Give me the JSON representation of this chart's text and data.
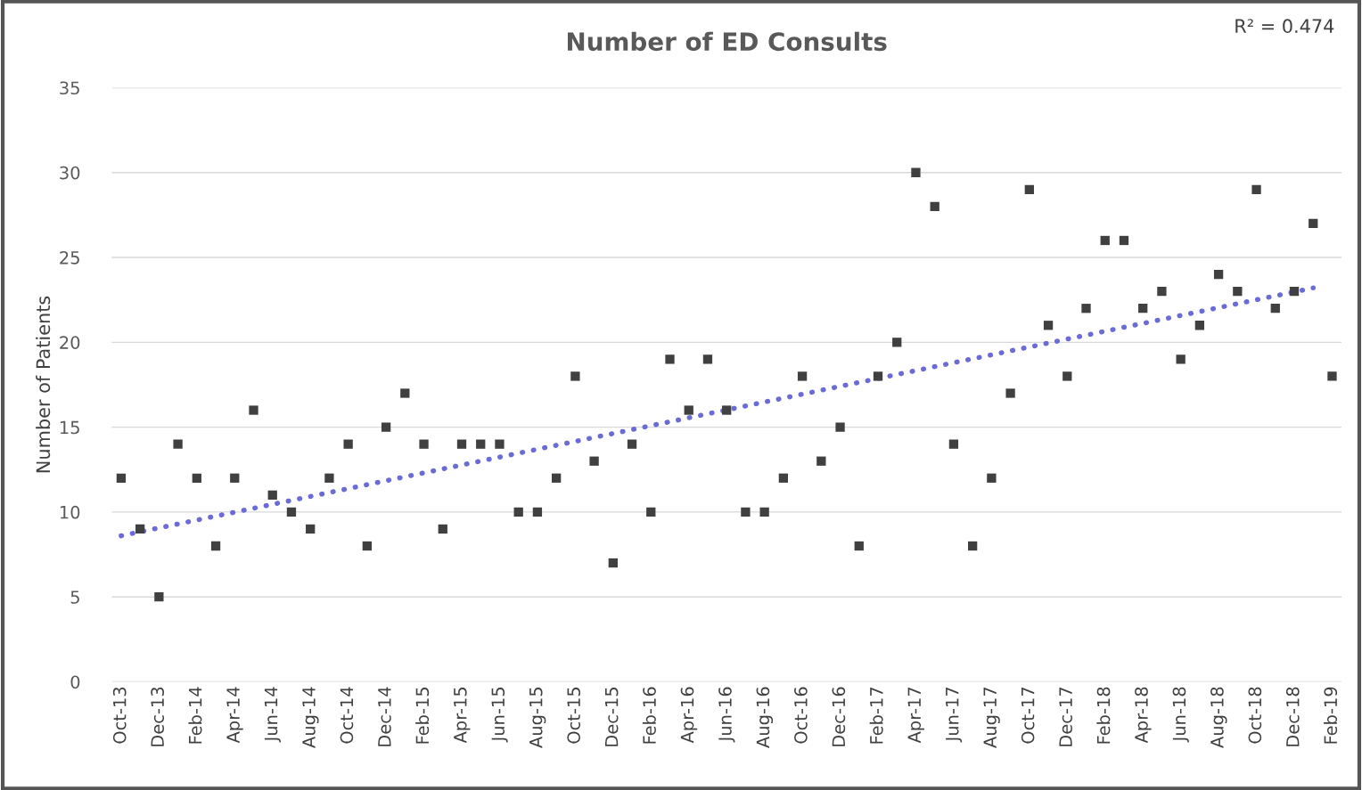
{
  "chart_data": {
    "type": "scatter",
    "title": "Number of ED Consults",
    "ylabel": "Number of Patients",
    "categories": [
      "Oct-13",
      null,
      "Dec-13",
      null,
      "Feb-14",
      null,
      "Apr-14",
      null,
      "Jun-14",
      null,
      "Aug-14",
      null,
      "Oct-14",
      null,
      "Dec-14",
      null,
      "Feb-15",
      null,
      "Apr-15",
      null,
      "Jun-15",
      null,
      "Aug-15",
      null,
      "Oct-15",
      null,
      "Dec-15",
      null,
      "Feb-16",
      null,
      "Apr-16",
      null,
      "Jun-16",
      null,
      "Aug-16",
      null,
      "Oct-16",
      null,
      "Dec-16",
      null,
      "Feb-17",
      null,
      "Apr-17",
      null,
      "Jun-17",
      null,
      "Aug-17",
      null,
      "Oct-17",
      null,
      "Dec-17",
      null,
      "Feb-18",
      null,
      "Apr-18",
      null,
      "Jun-18",
      null,
      "Aug-18",
      null,
      "Oct-18",
      null,
      "Dec-18",
      null,
      "Feb-19"
    ],
    "series": [
      {
        "color": "#404040",
        "marker": "square",
        "values": [
          12,
          9,
          5,
          14,
          12,
          8,
          12,
          16,
          11,
          10,
          9,
          12,
          14,
          8,
          15,
          17,
          14,
          9,
          14,
          14,
          14,
          10,
          10,
          12,
          18,
          13,
          7,
          14,
          10,
          19,
          16,
          19,
          16,
          10,
          10,
          12,
          18,
          13,
          15,
          8,
          18,
          20,
          30,
          28,
          14,
          8,
          12,
          17,
          29,
          21,
          18,
          22,
          26,
          26,
          22,
          23,
          19,
          21,
          24,
          23,
          29,
          22,
          23,
          27,
          18
        ]
      },
      {
        "type": "line",
        "color": "#6b6bd6",
        "line_style": "dotted",
        "values": [
          8.6,
          null,
          null,
          null,
          null,
          null,
          null,
          null,
          null,
          null,
          null,
          null,
          null,
          null,
          null,
          null,
          null,
          null,
          null,
          null,
          null,
          null,
          null,
          null,
          null,
          null,
          null,
          null,
          null,
          null,
          null,
          null,
          null,
          null,
          null,
          null,
          null,
          null,
          null,
          null,
          null,
          null,
          null,
          null,
          null,
          null,
          null,
          null,
          null,
          null,
          null,
          null,
          null,
          null,
          null,
          null,
          null,
          null,
          null,
          null,
          null,
          null,
          null,
          23.2,
          null
        ]
      }
    ],
    "ylim": [
      0,
      35
    ],
    "yticks": [
      0,
      5,
      10,
      15,
      20,
      25,
      30,
      35
    ],
    "grid": "y",
    "legend": false,
    "annotations": [
      "R² = 0.474"
    ]
  }
}
